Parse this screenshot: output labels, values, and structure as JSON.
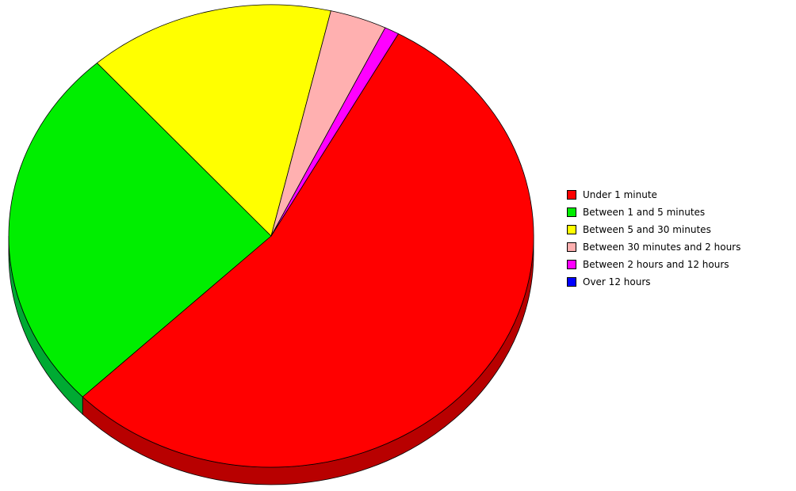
{
  "chart_data": {
    "type": "pie",
    "categories": [
      "Under 1 minute",
      "Between 1 and 5 minutes",
      "Between 5 and 30 minutes",
      "Between 30 minutes and 2 hours",
      "Between 2 hours and 12 hours",
      "Over 12 hours"
    ],
    "values": [
      54.7,
      25.7,
      15.2,
      3.5,
      0.9,
      0.0
    ],
    "colors": [
      "#ff0000",
      "#00ee00",
      "#ffff00",
      "#ffb0b0",
      "#ff00ff",
      "#0000ff"
    ],
    "side_colors": [
      "#b80000",
      "#00aa33",
      "#b3a300",
      "#c08080",
      "#aa00aa",
      "#0000aa"
    ],
    "start_angle_deg": 119,
    "direction": "clockwise",
    "three_d": true,
    "legend_position": "right"
  }
}
